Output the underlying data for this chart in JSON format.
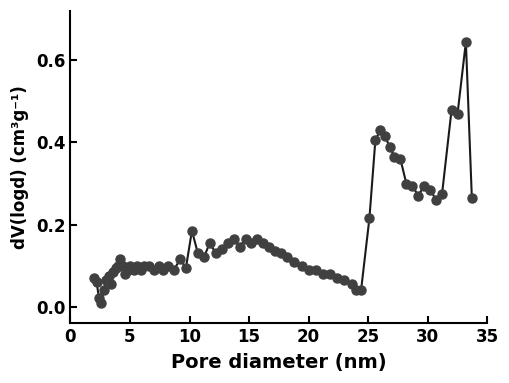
{
  "x": [
    2.0,
    2.2,
    2.4,
    2.6,
    2.8,
    3.0,
    3.2,
    3.4,
    3.6,
    3.8,
    4.0,
    4.2,
    4.4,
    4.6,
    4.8,
    5.0,
    5.3,
    5.6,
    5.9,
    6.2,
    6.6,
    7.0,
    7.4,
    7.8,
    8.2,
    8.7,
    9.2,
    9.7,
    10.2,
    10.7,
    11.2,
    11.7,
    12.2,
    12.7,
    13.2,
    13.7,
    14.2,
    14.7,
    15.2,
    15.7,
    16.2,
    16.7,
    17.2,
    17.7,
    18.2,
    18.8,
    19.4,
    20.0,
    20.6,
    21.2,
    21.8,
    22.4,
    23.0,
    23.6,
    24.0,
    24.4,
    25.1,
    25.6,
    26.0,
    26.4,
    26.8,
    27.2,
    27.7,
    28.2,
    28.7,
    29.2,
    29.7,
    30.2,
    30.7,
    31.2,
    32.0,
    32.5,
    33.2,
    33.7
  ],
  "y": [
    0.07,
    0.06,
    0.02,
    0.01,
    0.04,
    0.065,
    0.075,
    0.055,
    0.085,
    0.095,
    0.1,
    0.115,
    0.1,
    0.08,
    0.09,
    0.1,
    0.09,
    0.1,
    0.09,
    0.1,
    0.1,
    0.09,
    0.1,
    0.09,
    0.1,
    0.09,
    0.115,
    0.095,
    0.185,
    0.13,
    0.12,
    0.155,
    0.13,
    0.14,
    0.155,
    0.165,
    0.145,
    0.165,
    0.155,
    0.165,
    0.155,
    0.145,
    0.135,
    0.13,
    0.12,
    0.11,
    0.1,
    0.09,
    0.09,
    0.08,
    0.08,
    0.07,
    0.065,
    0.055,
    0.04,
    0.04,
    0.215,
    0.405,
    0.43,
    0.415,
    0.39,
    0.365,
    0.36,
    0.3,
    0.295,
    0.27,
    0.295,
    0.285,
    0.26,
    0.275,
    0.48,
    0.47,
    0.645,
    0.265
  ],
  "xlabel": "Pore diameter (nm)",
  "ylabel": "dV(logd) (cm³g⁻¹)",
  "xlim": [
    0,
    35
  ],
  "ylim": [
    -0.04,
    0.72
  ],
  "xticks": [
    0,
    5,
    10,
    15,
    20,
    25,
    30,
    35
  ],
  "yticks": [
    0.0,
    0.2,
    0.4,
    0.6
  ],
  "marker_color": "#404040",
  "line_color": "#1a1a1a",
  "marker_size": 6.5,
  "linewidth": 1.5,
  "background_color": "#ffffff"
}
